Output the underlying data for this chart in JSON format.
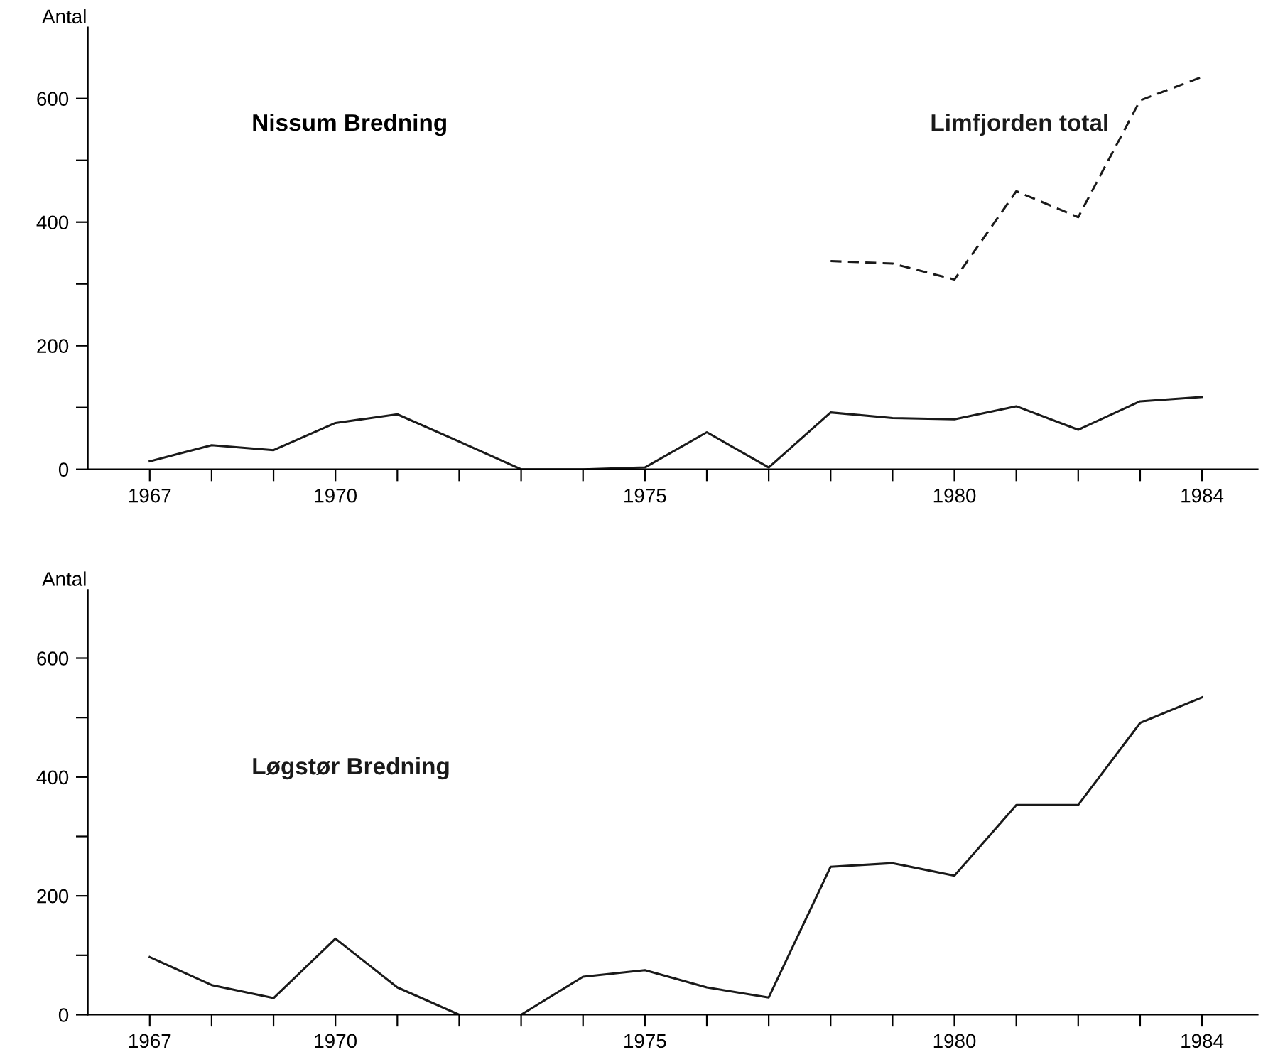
{
  "chart_data": [
    {
      "type": "line",
      "title": "Nissum Bredning",
      "ylabel": "Antal",
      "x": [
        1967,
        1968,
        1969,
        1970,
        1971,
        1972,
        1973,
        1974,
        1975,
        1976,
        1977,
        1978,
        1979,
        1980,
        1981,
        1982,
        1983,
        1984
      ],
      "xlim": [
        1966,
        1984.9
      ],
      "ylim": [
        0,
        715
      ],
      "xticks": [
        1967,
        {
          "value": 1968,
          "label": null
        },
        {
          "value": 1969,
          "label": null
        },
        1970,
        {
          "value": 1971,
          "label": null
        },
        {
          "value": 1972,
          "label": null
        },
        {
          "value": 1973,
          "label": null
        },
        {
          "value": 1974,
          "label": null
        },
        1975,
        {
          "value": 1976,
          "label": null
        },
        {
          "value": 1977,
          "label": null
        },
        {
          "value": 1978,
          "label": null
        },
        {
          "value": 1979,
          "label": null
        },
        1980,
        {
          "value": 1981,
          "label": null
        },
        {
          "value": 1982,
          "label": null
        },
        {
          "value": 1983,
          "label": null
        },
        1984
      ],
      "yticks": [
        0,
        {
          "value": 100,
          "label": null
        },
        200,
        {
          "value": 300,
          "label": null
        },
        400,
        {
          "value": 500,
          "label": null
        },
        600
      ],
      "grid": false,
      "legend": false,
      "marker": "none",
      "series": [
        {
          "color": "#1a1a1a",
          "line_style": "solid",
          "values": [
            13,
            39,
            31,
            75,
            89,
            45,
            0,
            0,
            3,
            60,
            3,
            92,
            83,
            81,
            102,
            64,
            110,
            117
          ]
        },
        {
          "name": "Limfjorden total",
          "color": "#1a1a1a",
          "line_style": "dashed",
          "values": [
            null,
            null,
            null,
            null,
            null,
            null,
            null,
            null,
            null,
            null,
            null,
            337,
            333,
            307,
            450,
            408,
            597,
            635
          ]
        }
      ]
    },
    {
      "type": "line",
      "ylabel": "Antal",
      "x": [
        1967,
        1968,
        1969,
        1970,
        1971,
        1972,
        1973,
        1974,
        1975,
        1976,
        1977,
        1978,
        1979,
        1980,
        1981,
        1982,
        1983,
        1984
      ],
      "xlim": [
        1966,
        1984.9
      ],
      "ylim": [
        0,
        715
      ],
      "xticks": [
        1967,
        {
          "value": 1968,
          "label": null
        },
        {
          "value": 1969,
          "label": null
        },
        1970,
        {
          "value": 1971,
          "label": null
        },
        {
          "value": 1972,
          "label": null
        },
        {
          "value": 1973,
          "label": null
        },
        {
          "value": 1974,
          "label": null
        },
        1975,
        {
          "value": 1976,
          "label": null
        },
        {
          "value": 1977,
          "label": null
        },
        {
          "value": 1978,
          "label": null
        },
        {
          "value": 1979,
          "label": null
        },
        1980,
        {
          "value": 1981,
          "label": null
        },
        {
          "value": 1982,
          "label": null
        },
        {
          "value": 1983,
          "label": null
        },
        1984
      ],
      "yticks": [
        0,
        {
          "value": 100,
          "label": null
        },
        200,
        {
          "value": 300,
          "label": null
        },
        400,
        {
          "value": 500,
          "label": null
        },
        600
      ],
      "grid": false,
      "legend": false,
      "marker": "none",
      "series": [
        {
          "name": "Løgstør Bredning",
          "color": "#1a1a1a",
          "line_style": "solid",
          "values": [
            97,
            50,
            28,
            128,
            46,
            0,
            0,
            64,
            75,
            46,
            29,
            249,
            255,
            234,
            353,
            353,
            491,
            534
          ]
        }
      ]
    }
  ]
}
